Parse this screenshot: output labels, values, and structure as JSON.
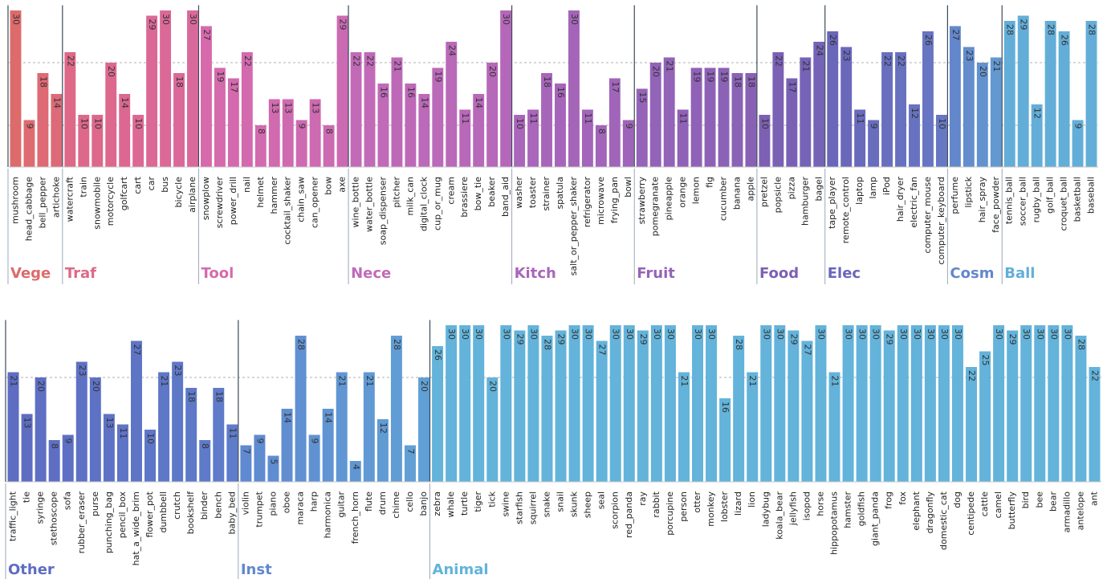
{
  "chart_data": [
    {
      "type": "bar",
      "panel": "top",
      "ylim": [
        0,
        31
      ],
      "groups": [
        {
          "name": "Vege",
          "color": "#dd6b6b",
          "categories": [
            "mushroom",
            "head_cabbage",
            "bell_pepper",
            "artichoke"
          ],
          "values": [
            30,
            9,
            18,
            14
          ]
        },
        {
          "name": "Traf",
          "color": "#de6888",
          "categories": [
            "watercraft",
            "train",
            "snowmobile",
            "motorcycle",
            "golfcart",
            "cart",
            "car",
            "bus",
            "bicycle",
            "airplane"
          ],
          "values": [
            22,
            10,
            10,
            20,
            14,
            10,
            29,
            30,
            18,
            30
          ]
        },
        {
          "name": "Tool",
          "color": "#d66aac",
          "categories": [
            "snowplow",
            "screwdriver",
            "power_drill",
            "nail",
            "helmet",
            "hammer",
            "cocktail_shaker",
            "chain_saw",
            "can_opener",
            "bow",
            "axe"
          ],
          "values": [
            27,
            19,
            17,
            22,
            8,
            13,
            13,
            9,
            13,
            8,
            29
          ]
        },
        {
          "name": "Nece",
          "color": "#c26ab8",
          "categories": [
            "wine_bottle",
            "water_bottle",
            "soap_dispenser",
            "pitcher",
            "milk_can",
            "digital_clock",
            "cup_or_mug",
            "cream",
            "brassiere",
            "bow_tie",
            "beaker",
            "band_aid"
          ],
          "values": [
            22,
            22,
            16,
            21,
            16,
            14,
            19,
            24,
            11,
            14,
            20,
            30
          ]
        },
        {
          "name": "Kitch",
          "color": "#aa66ba",
          "categories": [
            "washer",
            "toaster",
            "strainer",
            "spatula",
            "salt_or_pepper_shaker",
            "refrigerator",
            "microwave",
            "frying_pan",
            "bowl"
          ],
          "values": [
            10,
            11,
            18,
            16,
            30,
            11,
            8,
            17,
            9
          ]
        },
        {
          "name": "Fruit",
          "color": "#9563b8",
          "categories": [
            "strawberry",
            "pomegranate",
            "pineapple",
            "orange",
            "lemon",
            "fig",
            "cucumber",
            "banana",
            "apple"
          ],
          "values": [
            15,
            20,
            21,
            11,
            19,
            19,
            19,
            18,
            18
          ]
        },
        {
          "name": "Food",
          "color": "#7d60b3",
          "categories": [
            "pretzel",
            "popsicle",
            "pizza",
            "hamburger",
            "bagel"
          ],
          "values": [
            10,
            22,
            17,
            21,
            24
          ]
        },
        {
          "name": "Elec",
          "color": "#6a66ba",
          "categories": [
            "tape_player",
            "remote_control",
            "laptop",
            "lamp",
            "iPod",
            "hair_dryer",
            "electric_fan",
            "computer_mouse",
            "computer_keyboard"
          ],
          "values": [
            26,
            23,
            11,
            9,
            22,
            22,
            12,
            26,
            10
          ]
        },
        {
          "name": "Cosm",
          "color": "#6387cb",
          "categories": [
            "perfume",
            "lipstick",
            "hair_spray",
            "face_powder"
          ],
          "values": [
            27,
            23,
            20,
            21
          ]
        },
        {
          "name": "Ball",
          "color": "#63aed8",
          "categories": [
            "tennis_ball",
            "soccer_ball",
            "rugby_ball",
            "golf_ball",
            "croquet_ball",
            "basketball",
            "baseball"
          ],
          "values": [
            28,
            29,
            12,
            28,
            26,
            9,
            28
          ]
        }
      ]
    },
    {
      "type": "bar",
      "panel": "bottom",
      "ylim": [
        0,
        31
      ],
      "groups": [
        {
          "name": "Other",
          "color": "#5e6cc2",
          "categories": [
            "traffic_light",
            "tie",
            "syringe",
            "stethoscope",
            "sofa",
            "rubber_eraser",
            "purse",
            "punching_bag",
            "pencil_box",
            "hat_a_wide_brim",
            "flower_pot",
            "dumbbell",
            "crutch",
            "bookshelf",
            "binder",
            "bench",
            "baby_bed"
          ],
          "values": [
            21,
            13,
            20,
            8,
            9,
            23,
            20,
            13,
            11,
            27,
            10,
            21,
            23,
            18,
            8,
            18,
            11
          ]
        },
        {
          "name": "Inst",
          "color": "#5f89d0",
          "categories": [
            "violin",
            "trumpet",
            "piano",
            "oboe",
            "maraca",
            "harp",
            "harmonica",
            "guitar",
            "french_horn",
            "flute",
            "drum",
            "chime",
            "cello",
            "banjo"
          ],
          "values": [
            7,
            9,
            5,
            14,
            28,
            9,
            14,
            21,
            4,
            21,
            12,
            28,
            7,
            20
          ]
        },
        {
          "name": "Animal",
          "color": "#63b3da",
          "categories": [
            "zebra",
            "whale",
            "turtle",
            "tiger",
            "tick",
            "swine",
            "starfish",
            "squirrel",
            "snake",
            "snail",
            "skunk",
            "sheep",
            "seal",
            "scorpion",
            "red_panda",
            "ray",
            "rabbit",
            "porcupine",
            "person",
            "otter",
            "monkey",
            "lobster",
            "lizard",
            "lion",
            "ladybug",
            "koala_bear",
            "jellyfish",
            "isopod",
            "horse",
            "hippopotamus",
            "hamster",
            "goldfish",
            "giant_panda",
            "frog",
            "fox",
            "elephant",
            "dragonfly",
            "domestic_cat",
            "dog",
            "centipede",
            "cattle",
            "camel",
            "butterfly",
            "bird",
            "bee",
            "bear",
            "armadillo",
            "antelope",
            "ant"
          ],
          "values": [
            26,
            30,
            30,
            30,
            20,
            30,
            29,
            30,
            28,
            29,
            30,
            30,
            27,
            30,
            30,
            29,
            30,
            30,
            21,
            30,
            30,
            16,
            28,
            21,
            30,
            30,
            29,
            27,
            30,
            21,
            30,
            30,
            30,
            29,
            30,
            30,
            30,
            30,
            30,
            22,
            25,
            30,
            29,
            30,
            30,
            30,
            30,
            28,
            22
          ]
        }
      ]
    }
  ]
}
